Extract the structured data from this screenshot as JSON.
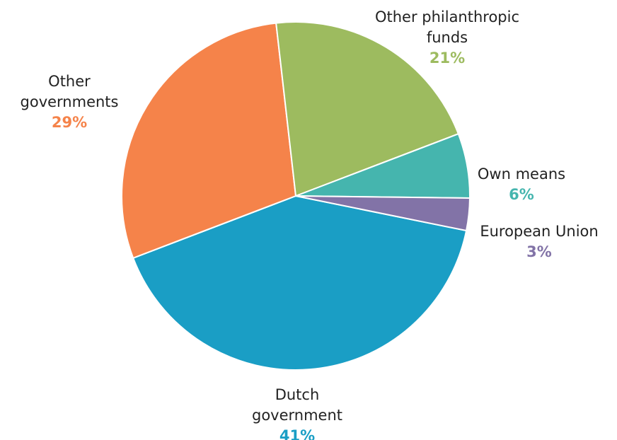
{
  "chart_data": {
    "type": "pie",
    "slices": [
      {
        "label_lines": [
          "Dutch",
          "government"
        ],
        "value_label": "41%",
        "value": 41,
        "color": "#1a9ec5"
      },
      {
        "label_lines": [
          "Other",
          "governments"
        ],
        "value_label": "29%",
        "value": 29,
        "color": "#f5834a"
      },
      {
        "label_lines": [
          "Other philanthropic",
          "funds"
        ],
        "value_label": "21%",
        "value": 21,
        "color": "#9dbb5f"
      },
      {
        "label_lines": [
          "Own means"
        ],
        "value_label": "6%",
        "value": 6,
        "color": "#45b5ae"
      },
      {
        "label_lines": [
          "European Union"
        ],
        "value_label": "3%",
        "value": 3,
        "color": "#8273a7"
      }
    ]
  }
}
